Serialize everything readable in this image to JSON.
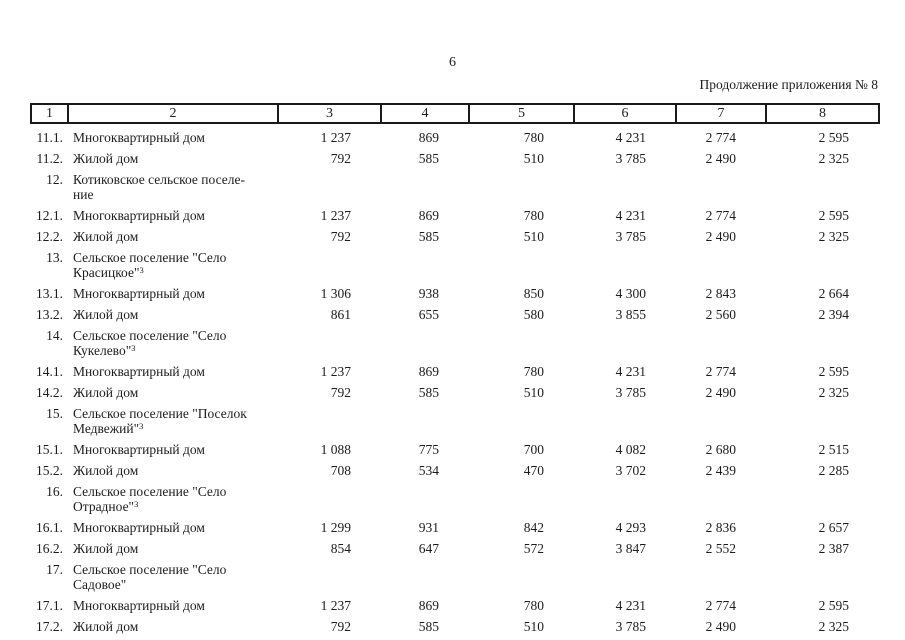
{
  "page": {
    "number": "6",
    "caption": "Продолжение приложения № 8"
  },
  "table": {
    "columns": [
      "1",
      "2",
      "3",
      "4",
      "5",
      "6",
      "7",
      "8"
    ],
    "rows": [
      {
        "num": "11.1.",
        "label_lines": [
          "Многоквартирный дом"
        ],
        "sup": "",
        "values": [
          "1 237",
          "869",
          "780",
          "4 231",
          "2 774",
          "2 595"
        ]
      },
      {
        "num": "11.2.",
        "label_lines": [
          "Жилой дом"
        ],
        "sup": "",
        "values": [
          "792",
          "585",
          "510",
          "3 785",
          "2 490",
          "2 325"
        ]
      },
      {
        "num": "12.",
        "label_lines": [
          "Котиковское сельское поселе-",
          "ние"
        ],
        "sup": "",
        "values": [
          "",
          "",
          "",
          "",
          "",
          ""
        ]
      },
      {
        "num": "12.1.",
        "label_lines": [
          "Многоквартирный дом"
        ],
        "sup": "",
        "values": [
          "1 237",
          "869",
          "780",
          "4 231",
          "2 774",
          "2 595"
        ]
      },
      {
        "num": "12.2.",
        "label_lines": [
          "Жилой дом"
        ],
        "sup": "",
        "values": [
          "792",
          "585",
          "510",
          "3 785",
          "2 490",
          "2 325"
        ]
      },
      {
        "num": "13.",
        "label_lines": [
          "Сельское поселение \"Село",
          "Красицкое\""
        ],
        "sup": "3",
        "values": [
          "",
          "",
          "",
          "",
          "",
          ""
        ]
      },
      {
        "num": "13.1.",
        "label_lines": [
          "Многоквартирный дом"
        ],
        "sup": "",
        "values": [
          "1 306",
          "938",
          "850",
          "4 300",
          "2 843",
          "2 664"
        ]
      },
      {
        "num": "13.2.",
        "label_lines": [
          "Жилой дом"
        ],
        "sup": "",
        "values": [
          "861",
          "655",
          "580",
          "3 855",
          "2 560",
          "2 394"
        ]
      },
      {
        "num": "14.",
        "label_lines": [
          "Сельское поселение \"Село",
          "Кукелево\""
        ],
        "sup": "3",
        "values": [
          "",
          "",
          "",
          "",
          "",
          ""
        ]
      },
      {
        "num": "14.1.",
        "label_lines": [
          "Многоквартирный дом"
        ],
        "sup": "",
        "values": [
          "1 237",
          "869",
          "780",
          "4 231",
          "2 774",
          "2 595"
        ]
      },
      {
        "num": "14.2.",
        "label_lines": [
          "Жилой дом"
        ],
        "sup": "",
        "values": [
          "792",
          "585",
          "510",
          "3 785",
          "2 490",
          "2 325"
        ]
      },
      {
        "num": "15.",
        "label_lines": [
          "Сельское поселение \"Поселок",
          "Медвежий\""
        ],
        "sup": "3",
        "values": [
          "",
          "",
          "",
          "",
          "",
          ""
        ]
      },
      {
        "num": "15.1.",
        "label_lines": [
          "Многоквартирный дом"
        ],
        "sup": "",
        "values": [
          "1 088",
          "775",
          "700",
          "4 082",
          "2 680",
          "2 515"
        ]
      },
      {
        "num": "15.2.",
        "label_lines": [
          "Жилой дом"
        ],
        "sup": "",
        "values": [
          "708",
          "534",
          "470",
          "3 702",
          "2 439",
          "2 285"
        ]
      },
      {
        "num": "16.",
        "label_lines": [
          "Сельское поселение \"Село",
          "Отрадное\""
        ],
        "sup": "3",
        "values": [
          "",
          "",
          "",
          "",
          "",
          ""
        ]
      },
      {
        "num": "16.1.",
        "label_lines": [
          "Многоквартирный дом"
        ],
        "sup": "",
        "values": [
          "1 299",
          "931",
          "842",
          "4 293",
          "2 836",
          "2 657"
        ]
      },
      {
        "num": "16.2.",
        "label_lines": [
          "Жилой дом"
        ],
        "sup": "",
        "values": [
          "854",
          "647",
          "572",
          "3 847",
          "2 552",
          "2 387"
        ]
      },
      {
        "num": "17.",
        "label_lines": [
          "Сельское поселение \"Село",
          "Садовое\""
        ],
        "sup": "",
        "values": [
          "",
          "",
          "",
          "",
          "",
          ""
        ]
      },
      {
        "num": "17.1.",
        "label_lines": [
          "Многоквартирный дом"
        ],
        "sup": "",
        "values": [
          "1 237",
          "869",
          "780",
          "4 231",
          "2 774",
          "2 595"
        ]
      },
      {
        "num": "17.2.",
        "label_lines": [
          "Жилой дом"
        ],
        "sup": "",
        "values": [
          "792",
          "585",
          "510",
          "3 785",
          "2 490",
          "2 325"
        ]
      }
    ]
  }
}
